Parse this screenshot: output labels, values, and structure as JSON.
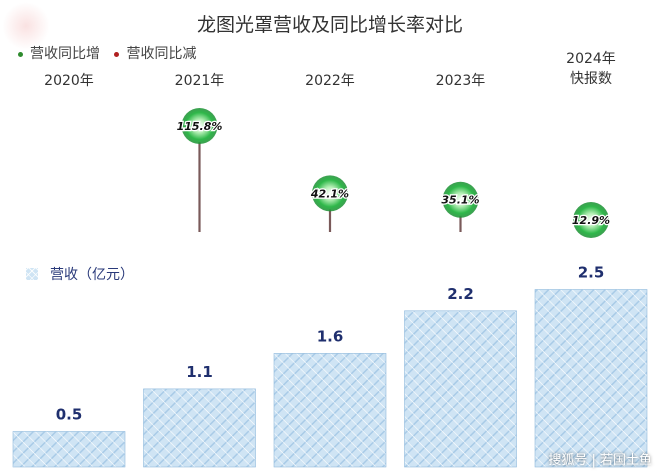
{
  "title": "龙图光罩营收及同比增长率对比",
  "legend": {
    "growth_up": "营收同比增",
    "growth_down": "营收同比减",
    "revenue": "营收（亿元）"
  },
  "watermark": "搜狐号 | 若国土鱼",
  "colors": {
    "up": "#2e8b2e",
    "down": "#b02020",
    "bar_fill": "#cfe4f4",
    "bar_line": "#8fb9dd",
    "stem": "#7a5a5a",
    "value_label": "#1f2f6e",
    "year_label": "#333333"
  },
  "chart_data": {
    "type": "bar",
    "categories": [
      "2020年",
      "2021年",
      "2022年",
      "2023年",
      "2024年\n快报数"
    ],
    "series": [
      {
        "name": "营收（亿元）",
        "values": [
          0.5,
          1.1,
          1.6,
          2.2,
          2.5
        ]
      },
      {
        "name": "营收同比增",
        "values": [
          null,
          115.8,
          42.1,
          35.1,
          12.9
        ]
      }
    ],
    "revenue_labels": [
      "0.5",
      "1.1",
      "1.6",
      "2.2",
      "2.5"
    ],
    "growth_labels": [
      "",
      "115.8%",
      "42.1%",
      "35.1%",
      "12.9%"
    ],
    "legend_position": "top-left",
    "grid": false
  }
}
